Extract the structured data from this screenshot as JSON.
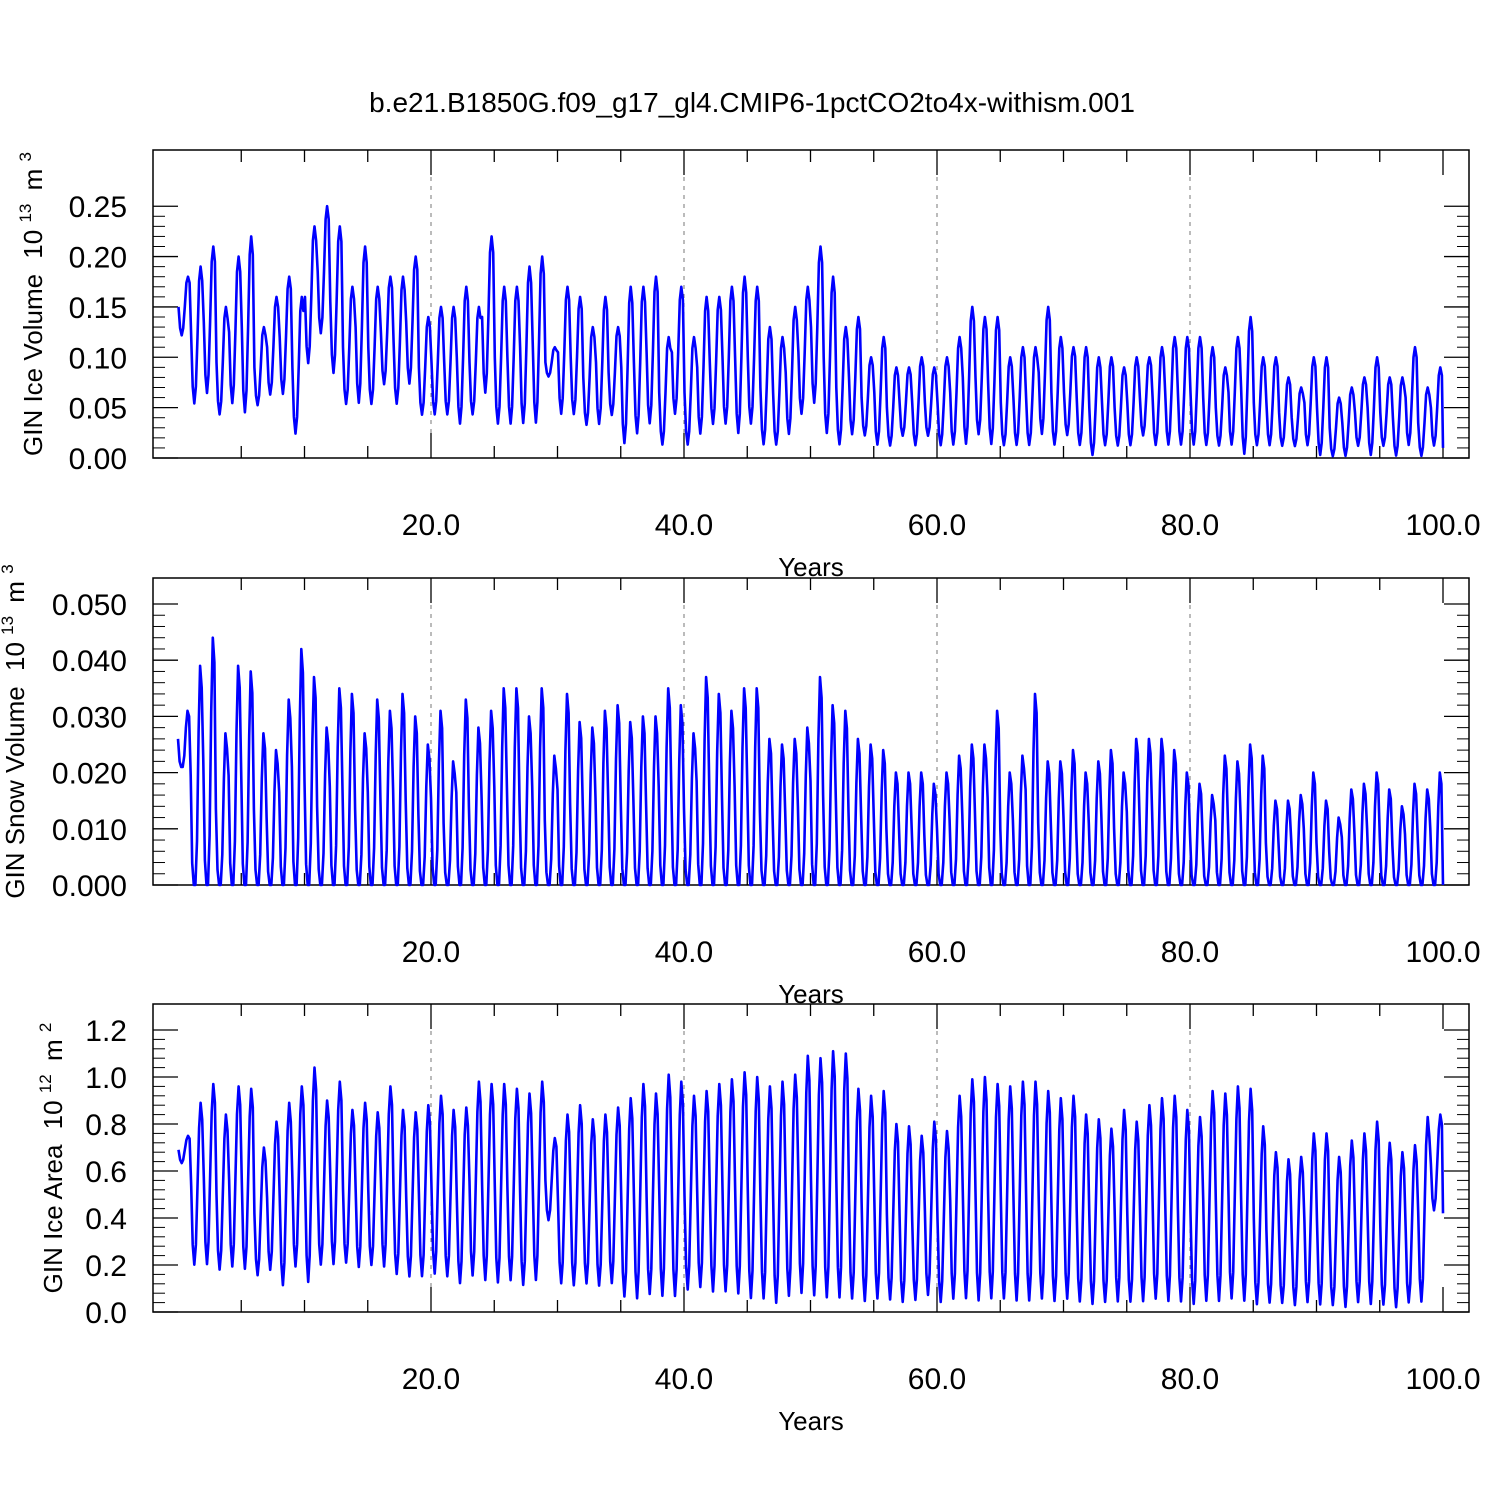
{
  "figure": {
    "title": "b.e21.B1850G.f09_g17_gl4.CMIP6-1pctCO2to4x-withism.001",
    "line_color": "#0000ff"
  },
  "chart_data": [
    {
      "type": "line",
      "title": "",
      "ylabel": "GIN Ice Volume",
      "ylabel_unit": {
        "base": "10",
        "exp": "13",
        "unit": "m",
        "unit_exp": "3"
      },
      "xlabel": "Years",
      "xlim": [
        0,
        100
      ],
      "ylim": [
        0,
        0.28
      ],
      "xticks": [
        20,
        40,
        60,
        80,
        100
      ],
      "xtick_labels": [
        "20.0",
        "40.0",
        "60.0",
        "80.0",
        "100.0"
      ],
      "yticks": [
        0,
        0.05,
        0.1,
        0.15,
        0.2,
        0.25
      ],
      "ytick_labels": [
        "0.00",
        "0.05",
        "0.10",
        "0.15",
        "0.20",
        "0.25"
      ],
      "grid": "dashed vertical at x ticks",
      "series": [
        {
          "x_start": 0.04,
          "x_step": 1.0,
          "cycle": [
            0.5,
            0.15,
            0.03,
            0.15,
            0.5,
            0.9,
            1.0,
            0.9
          ],
          "annual_max": [
            0.18,
            0.19,
            0.21,
            0.15,
            0.2,
            0.22,
            0.13,
            0.16,
            0.18,
            0.16,
            0.23,
            0.25,
            0.23,
            0.17,
            0.21,
            0.17,
            0.18,
            0.18,
            0.2,
            0.14,
            0.15,
            0.15,
            0.17,
            0.15,
            0.22,
            0.17,
            0.17,
            0.19,
            0.2,
            0.11,
            0.17,
            0.16,
            0.13,
            0.16,
            0.13,
            0.17,
            0.17,
            0.18,
            0.12,
            0.17,
            0.12,
            0.16,
            0.16,
            0.17,
            0.18,
            0.17,
            0.13,
            0.12,
            0.15,
            0.17,
            0.21,
            0.18,
            0.13,
            0.14,
            0.1,
            0.12,
            0.09,
            0.09,
            0.1,
            0.09,
            0.1,
            0.12,
            0.15,
            0.14,
            0.14,
            0.1,
            0.11,
            0.11,
            0.15,
            0.12,
            0.11,
            0.11,
            0.1,
            0.1,
            0.09,
            0.1,
            0.1,
            0.11,
            0.12,
            0.12,
            0.12,
            0.11,
            0.09,
            0.12,
            0.14,
            0.1,
            0.1,
            0.08,
            0.07,
            0.1,
            0.1,
            0.06,
            0.07,
            0.08,
            0.1,
            0.08,
            0.08,
            0.11,
            0.07,
            0.09
          ],
          "annual_min": [
            0.12,
            0.05,
            0.06,
            0.04,
            0.05,
            0.04,
            0.05,
            0.06,
            0.06,
            0.02,
            0.09,
            0.12,
            0.08,
            0.05,
            0.05,
            0.05,
            0.07,
            0.05,
            0.07,
            0.04,
            0.04,
            0.04,
            0.03,
            0.04,
            0.06,
            0.03,
            0.03,
            0.03,
            0.03,
            0.08,
            0.04,
            0.04,
            0.03,
            0.03,
            0.04,
            0.01,
            0.02,
            0.03,
            0.01,
            0.04,
            0.01,
            0.02,
            0.03,
            0.03,
            0.02,
            0.03,
            0.01,
            0.01,
            0.02,
            0.04,
            0.05,
            0.02,
            0.01,
            0.02,
            0.02,
            0.01,
            0.01,
            0.02,
            0.01,
            0.02,
            0.01,
            0.01,
            0.01,
            0.02,
            0.01,
            0.01,
            0.01,
            0.01,
            0.02,
            0.01,
            0.02,
            0.01,
            0.0,
            0.01,
            0.01,
            0.01,
            0.02,
            0.01,
            0.01,
            0.01,
            0.01,
            0.01,
            0.01,
            0.01,
            0.0,
            0.01,
            0.01,
            0.01,
            0.01,
            0.01,
            0.0,
            0.0,
            0.0,
            0.01,
            0.0,
            0.01,
            0.0,
            0.01,
            0.0,
            0.01
          ]
        }
      ]
    },
    {
      "type": "line",
      "title": "",
      "ylabel": "GIN Snow Volume",
      "ylabel_unit": {
        "base": "10",
        "exp": "13",
        "unit": "m",
        "unit_exp": "3"
      },
      "xlabel": "Years",
      "xlim": [
        0,
        100
      ],
      "ylim": [
        0,
        0.05
      ],
      "xticks": [
        20,
        40,
        60,
        80,
        100
      ],
      "xtick_labels": [
        "20.0",
        "40.0",
        "60.0",
        "80.0",
        "100.0"
      ],
      "yticks": [
        0,
        0.01,
        0.02,
        0.03,
        0.04,
        0.05
      ],
      "ytick_labels": [
        "0.000",
        "0.010",
        "0.020",
        "0.030",
        "0.040",
        "0.050"
      ],
      "grid": "dashed vertical at x ticks",
      "series": [
        {
          "x_start": 0.0,
          "x_step": 1.0,
          "cycle": [
            0.5,
            0.1,
            0.0,
            0.0,
            0.2,
            0.7,
            1.0,
            0.9
          ],
          "annual_max": [
            0.031,
            0.039,
            0.044,
            0.027,
            0.039,
            0.038,
            0.027,
            0.024,
            0.033,
            0.042,
            0.037,
            0.028,
            0.035,
            0.034,
            0.027,
            0.033,
            0.031,
            0.034,
            0.03,
            0.025,
            0.031,
            0.022,
            0.033,
            0.028,
            0.031,
            0.035,
            0.035,
            0.03,
            0.035,
            0.023,
            0.034,
            0.029,
            0.028,
            0.031,
            0.032,
            0.029,
            0.03,
            0.03,
            0.035,
            0.032,
            0.027,
            0.037,
            0.034,
            0.031,
            0.035,
            0.035,
            0.026,
            0.025,
            0.026,
            0.028,
            0.037,
            0.032,
            0.031,
            0.026,
            0.025,
            0.024,
            0.02,
            0.02,
            0.02,
            0.018,
            0.02,
            0.023,
            0.025,
            0.025,
            0.031,
            0.02,
            0.023,
            0.034,
            0.022,
            0.022,
            0.024,
            0.02,
            0.022,
            0.024,
            0.02,
            0.026,
            0.026,
            0.026,
            0.024,
            0.02,
            0.018,
            0.016,
            0.023,
            0.022,
            0.025,
            0.023,
            0.015,
            0.015,
            0.016,
            0.02,
            0.015,
            0.012,
            0.017,
            0.018,
            0.02,
            0.017,
            0.014,
            0.018,
            0.017,
            0.02
          ],
          "annual_min": [
            0.021,
            0.0,
            0.0,
            0.0,
            0.0,
            0.0,
            0.0,
            0.0,
            0.0,
            0.0,
            0.0,
            0.0,
            0.0,
            0.0,
            0.0,
            0.0,
            0.0,
            0.0,
            0.0,
            0.0,
            0.0,
            0.0,
            0.0,
            0.0,
            0.0,
            0.0,
            0.0,
            0.0,
            0.0,
            0.0,
            0.0,
            0.0,
            0.0,
            0.0,
            0.0,
            0.0,
            0.0,
            0.0,
            0.0,
            0.0,
            0.0,
            0.0,
            0.0,
            0.0,
            0.0,
            0.0,
            0.0,
            0.0,
            0.0,
            0.0,
            0.0,
            0.0,
            0.0,
            0.0,
            0.0,
            0.0,
            0.0,
            0.0,
            0.0,
            0.0,
            0.0,
            0.0,
            0.0,
            0.0,
            0.0,
            0.0,
            0.0,
            0.0,
            0.0,
            0.0,
            0.0,
            0.0,
            0.0,
            0.0,
            0.0,
            0.0,
            0.0,
            0.0,
            0.0,
            0.0,
            0.0,
            0.0,
            0.0,
            0.0,
            0.0,
            0.0,
            0.0,
            0.0,
            0.0,
            0.0,
            0.0,
            0.0,
            0.0,
            0.0,
            0.0,
            0.0,
            0.0,
            0.0,
            0.0,
            0.0
          ]
        }
      ]
    },
    {
      "type": "line",
      "title": "",
      "ylabel": "GIN Ice Area",
      "ylabel_unit": {
        "base": "10",
        "exp": "12",
        "unit": "m",
        "unit_exp": "2"
      },
      "xlabel": "Years",
      "xlim": [
        0,
        100
      ],
      "ylim": [
        0,
        1.2
      ],
      "xticks": [
        20,
        40,
        60,
        80,
        100
      ],
      "xtick_labels": [
        "20.0",
        "40.0",
        "60.0",
        "80.0",
        "100.0"
      ],
      "yticks": [
        0,
        0.2,
        0.4,
        0.6,
        0.8,
        1.0,
        1.2
      ],
      "ytick_labels": [
        "0.0",
        "0.2",
        "0.4",
        "0.6",
        "0.8",
        "1.0",
        "1.2"
      ],
      "grid": "dashed vertical at x ticks",
      "series": [
        {
          "x_start": 0.04,
          "x_step": 1.0,
          "cycle": [
            0.5,
            0.15,
            0.03,
            0.15,
            0.5,
            0.85,
            1.0,
            0.9
          ],
          "annual_max": [
            0.75,
            0.89,
            0.97,
            0.84,
            0.96,
            0.95,
            0.7,
            0.81,
            0.89,
            0.96,
            1.04,
            0.9,
            0.98,
            0.86,
            0.89,
            0.85,
            0.96,
            0.86,
            0.85,
            0.88,
            0.92,
            0.86,
            0.87,
            0.98,
            0.97,
            0.97,
            0.95,
            0.93,
            0.98,
            0.74,
            0.84,
            0.88,
            0.82,
            0.84,
            0.87,
            0.91,
            0.97,
            0.93,
            1.01,
            0.98,
            0.92,
            0.94,
            0.97,
            0.99,
            1.02,
            1.0,
            0.96,
            0.98,
            1.01,
            1.09,
            1.08,
            1.11,
            1.1,
            0.95,
            0.92,
            0.94,
            0.8,
            0.79,
            0.75,
            0.81,
            0.77,
            0.92,
            0.99,
            1.0,
            0.97,
            0.96,
            0.98,
            0.98,
            0.94,
            0.91,
            0.92,
            0.84,
            0.82,
            0.78,
            0.86,
            0.81,
            0.88,
            0.91,
            0.92,
            0.86,
            0.83,
            0.94,
            0.93,
            0.96,
            0.95,
            0.79,
            0.68,
            0.65,
            0.66,
            0.76,
            0.76,
            0.66,
            0.73,
            0.76,
            0.81,
            0.72,
            0.68,
            0.71,
            0.83,
            0.84
          ],
          "annual_min": [
            0.63,
            0.18,
            0.18,
            0.16,
            0.17,
            0.16,
            0.14,
            0.16,
            0.09,
            0.17,
            0.1,
            0.18,
            0.18,
            0.19,
            0.17,
            0.18,
            0.17,
            0.14,
            0.13,
            0.13,
            0.14,
            0.13,
            0.1,
            0.13,
            0.11,
            0.1,
            0.11,
            0.09,
            0.11,
            0.38,
            0.1,
            0.09,
            0.1,
            0.09,
            0.1,
            0.04,
            0.03,
            0.05,
            0.04,
            0.04,
            0.07,
            0.08,
            0.06,
            0.06,
            0.05,
            0.03,
            0.03,
            0.01,
            0.04,
            0.05,
            0.04,
            0.03,
            0.03,
            0.03,
            0.02,
            0.03,
            0.03,
            0.02,
            0.03,
            0.05,
            0.02,
            0.03,
            0.03,
            0.02,
            0.03,
            0.03,
            0.02,
            0.02,
            0.03,
            0.02,
            0.03,
            0.02,
            0.01,
            0.02,
            0.02,
            0.02,
            0.02,
            0.03,
            0.02,
            0.02,
            0.01,
            0.02,
            0.02,
            0.03,
            0.02,
            0.01,
            0.02,
            0.02,
            0.01,
            0.02,
            0.01,
            0.01,
            0.0,
            0.02,
            0.01,
            0.01,
            0.0,
            0.02,
            0.02,
            0.42
          ]
        }
      ]
    }
  ]
}
